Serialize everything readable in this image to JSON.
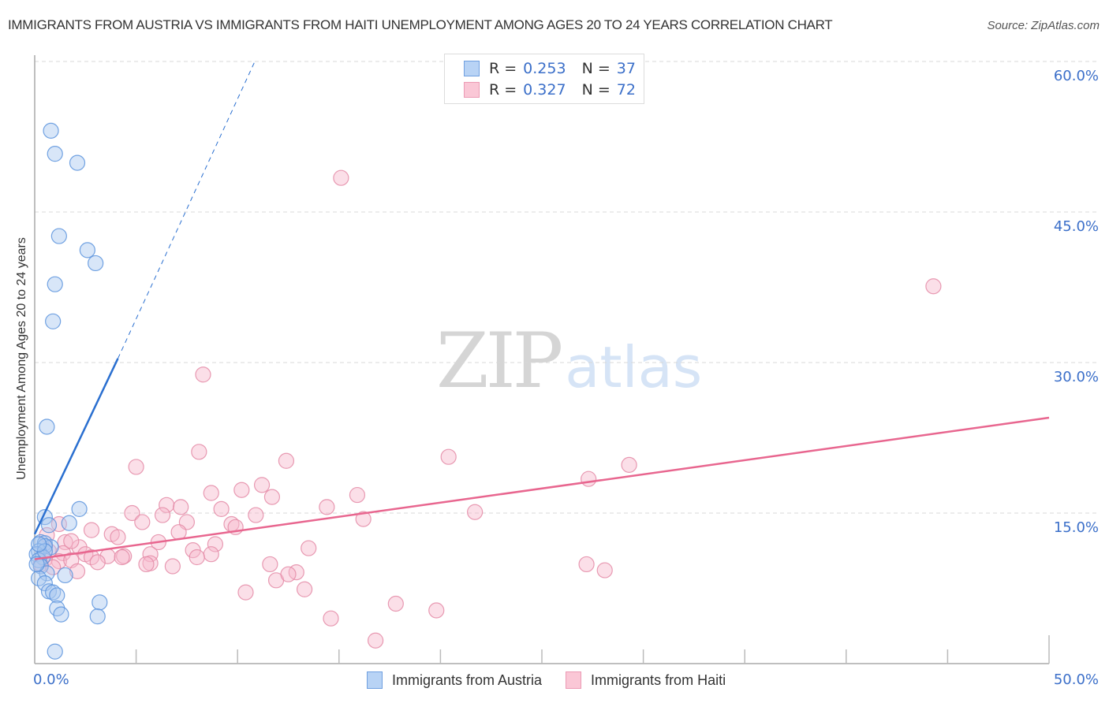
{
  "header": {
    "title": "IMMIGRANTS FROM AUSTRIA VS IMMIGRANTS FROM HAITI UNEMPLOYMENT AMONG AGES 20 TO 24 YEARS CORRELATION CHART",
    "source": "Source: ZipAtlas.com"
  },
  "watermark": {
    "zip": "ZIP",
    "atlas": "atlas"
  },
  "axes": {
    "ylabel": "Unemployment Among Ages 20 to 24 years",
    "y_ticks": [
      "60.0%",
      "45.0%",
      "30.0%",
      "15.0%"
    ],
    "x_min_label": "0.0%",
    "x_max_label": "50.0%"
  },
  "legend": {
    "rows": [
      {
        "r_label": "R =",
        "r_value": "0.253",
        "n_label": "N =",
        "n_value": "37",
        "color": "#a9c8f0"
      },
      {
        "r_label": "R =",
        "r_value": "0.327",
        "n_label": "N =",
        "n_value": "72",
        "color": "#f7b9cb"
      }
    ]
  },
  "bottom_legend": {
    "items": [
      {
        "label": "Immigrants from Austria",
        "color": "#a9c8f0"
      },
      {
        "label": "Immigrants from Haiti",
        "color": "#f7b9cb"
      }
    ]
  },
  "colors": {
    "austria_fill": "#a9c8f0",
    "austria_stroke": "#5b93dd",
    "austria_line": "#2a6fd0",
    "haiti_fill": "#f7b9cb",
    "haiti_stroke": "#e48aa6",
    "haiti_line": "#e8668f",
    "tick_label": "#3b6fc9"
  },
  "chart_data": {
    "type": "scatter",
    "title": "IMMIGRANTS FROM AUSTRIA VS IMMIGRANTS FROM HAITI UNEMPLOYMENT AMONG AGES 20 TO 24 YEARS CORRELATION CHART",
    "xlabel": "",
    "ylabel": "Unemployment Among Ages 20 to 24 years",
    "xlim": [
      0,
      50
    ],
    "ylim": [
      0,
      60
    ],
    "x_tick_labels": [
      "0.0%",
      "50.0%"
    ],
    "y_tick_labels": [
      "15.0%",
      "30.0%",
      "45.0%",
      "60.0%"
    ],
    "y_ticks": [
      15,
      30,
      45,
      60
    ],
    "x_minor_ticks": [
      0,
      5,
      10,
      15,
      20,
      25,
      30,
      35,
      40,
      45,
      50
    ],
    "grid": "horizontal dashed",
    "legend_position": "top-center",
    "series": [
      {
        "name": "Immigrants from Austria",
        "R": 0.253,
        "N": 37,
        "points": [
          [
            0.8,
            53.1
          ],
          [
            1.0,
            50.8
          ],
          [
            2.1,
            49.9
          ],
          [
            1.2,
            42.6
          ],
          [
            2.6,
            41.2
          ],
          [
            3.0,
            39.9
          ],
          [
            1.0,
            37.8
          ],
          [
            0.9,
            34.1
          ],
          [
            0.6,
            23.6
          ],
          [
            2.2,
            15.4
          ],
          [
            0.5,
            14.6
          ],
          [
            1.7,
            14.0
          ],
          [
            0.7,
            13.8
          ],
          [
            0.3,
            12.1
          ],
          [
            0.5,
            12.0
          ],
          [
            0.8,
            11.6
          ],
          [
            0.5,
            11.7
          ],
          [
            0.2,
            11.2
          ],
          [
            0.1,
            10.9
          ],
          [
            0.4,
            10.6
          ],
          [
            0.2,
            10.3
          ],
          [
            0.3,
            9.7
          ],
          [
            0.6,
            9.0
          ],
          [
            0.2,
            8.5
          ],
          [
            1.5,
            8.8
          ],
          [
            0.5,
            8.0
          ],
          [
            0.7,
            7.2
          ],
          [
            0.9,
            7.1
          ],
          [
            1.1,
            6.8
          ],
          [
            1.1,
            5.5
          ],
          [
            1.3,
            4.9
          ],
          [
            3.2,
            6.1
          ],
          [
            3.1,
            4.7
          ],
          [
            1.0,
            1.2
          ],
          [
            0.1,
            9.9
          ],
          [
            0.5,
            11.2
          ],
          [
            0.2,
            11.9
          ]
        ],
        "trend_line": {
          "x": [
            0,
            4.1,
            10.85
          ],
          "y": [
            12.9,
            30.4,
            60.0
          ],
          "solid_until_x": 4.1
        }
      },
      {
        "name": "Immigrants from Haiti",
        "R": 0.327,
        "N": 72,
        "points": [
          [
            15.1,
            48.4
          ],
          [
            44.3,
            37.6
          ],
          [
            8.3,
            28.8
          ],
          [
            8.1,
            21.1
          ],
          [
            20.4,
            20.6
          ],
          [
            12.4,
            20.2
          ],
          [
            29.3,
            19.8
          ],
          [
            5.0,
            19.6
          ],
          [
            27.3,
            18.4
          ],
          [
            11.2,
            17.8
          ],
          [
            10.2,
            17.3
          ],
          [
            8.7,
            17.0
          ],
          [
            15.9,
            16.8
          ],
          [
            11.7,
            16.6
          ],
          [
            6.5,
            15.8
          ],
          [
            7.2,
            15.6
          ],
          [
            14.4,
            15.6
          ],
          [
            21.7,
            15.1
          ],
          [
            4.8,
            15.0
          ],
          [
            9.2,
            15.4
          ],
          [
            6.3,
            14.8
          ],
          [
            10.9,
            14.8
          ],
          [
            5.3,
            14.1
          ],
          [
            9.7,
            13.9
          ],
          [
            16.2,
            14.4
          ],
          [
            7.5,
            14.1
          ],
          [
            2.8,
            13.3
          ],
          [
            3.8,
            12.9
          ],
          [
            9.9,
            13.6
          ],
          [
            7.1,
            13.1
          ],
          [
            1.2,
            13.9
          ],
          [
            6.1,
            12.1
          ],
          [
            4.1,
            12.6
          ],
          [
            8.9,
            11.9
          ],
          [
            1.5,
            12.1
          ],
          [
            2.2,
            11.6
          ],
          [
            7.8,
            11.3
          ],
          [
            13.5,
            11.5
          ],
          [
            2.5,
            10.9
          ],
          [
            4.4,
            10.7
          ],
          [
            3.6,
            10.7
          ],
          [
            2.8,
            10.6
          ],
          [
            5.7,
            10.9
          ],
          [
            3.1,
            10.1
          ],
          [
            4.3,
            10.6
          ],
          [
            5.7,
            10.0
          ],
          [
            8.7,
            10.9
          ],
          [
            8.0,
            10.6
          ],
          [
            0.7,
            11.2
          ],
          [
            0.5,
            10.4
          ],
          [
            0.3,
            9.9
          ],
          [
            1.4,
            11.0
          ],
          [
            1.2,
            10.2
          ],
          [
            1.8,
            10.3
          ],
          [
            2.1,
            9.2
          ],
          [
            6.8,
            9.7
          ],
          [
            11.6,
            9.9
          ],
          [
            27.2,
            9.9
          ],
          [
            28.1,
            9.3
          ],
          [
            5.5,
            9.9
          ],
          [
            11.9,
            8.3
          ],
          [
            12.9,
            9.1
          ],
          [
            12.5,
            8.9
          ],
          [
            10.4,
            7.1
          ],
          [
            13.3,
            7.4
          ],
          [
            17.8,
            5.97
          ],
          [
            19.8,
            5.3
          ],
          [
            14.6,
            4.5
          ],
          [
            16.8,
            2.3
          ],
          [
            1.8,
            12.2
          ],
          [
            0.6,
            12.8
          ],
          [
            0.9,
            9.6
          ]
        ],
        "trend_line": {
          "x": [
            0,
            50
          ],
          "y": [
            10.4,
            24.5
          ]
        }
      }
    ]
  }
}
